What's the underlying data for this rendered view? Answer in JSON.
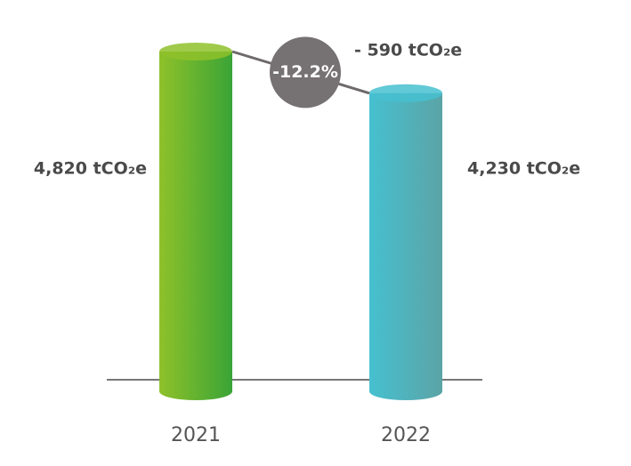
{
  "chart_data": {
    "type": "cylinder",
    "categories": [
      "2021",
      "2022"
    ],
    "values": [
      4820,
      4230
    ],
    "value_labels": [
      "4,820 tCO₂e",
      "4,230 tCO₂e"
    ],
    "colors": [
      [
        "#8fc12a",
        "#3aa436"
      ],
      [
        "#46c0d0",
        "#5ba4a6"
      ]
    ],
    "annotations": {
      "change_percent": "-12.2%",
      "change_amount": "- 590 tCO₂e"
    }
  }
}
